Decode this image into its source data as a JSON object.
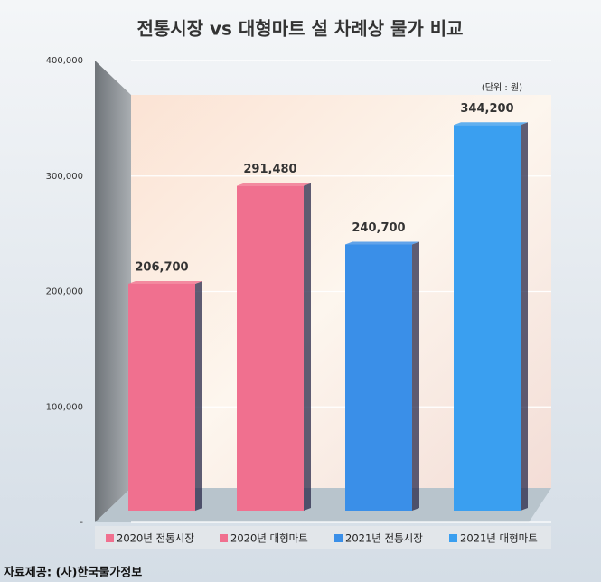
{
  "chart_data": {
    "type": "bar",
    "title": "전통시장 vs 대형마트  설 차례상 물가 비교",
    "unit_note": "(단위 : 원)",
    "source": "자료제공: (사)한국물가정보",
    "categories": [
      "2020년 전통시장",
      "2020년 대형마트",
      "2021년 전통시장",
      "2021년 대형마트"
    ],
    "values": [
      206700,
      291480,
      240700,
      344200
    ],
    "value_labels": [
      "206,700",
      "291,480",
      "240,700",
      "344,200"
    ],
    "colors": [
      "#f0708f",
      "#f0708f",
      "#3a8fe8",
      "#3a9ff0"
    ],
    "ylim": [
      0,
      400000
    ],
    "yticks": [
      {
        "value": 0,
        "label": "-"
      },
      {
        "value": 100000,
        "label": "100,000"
      },
      {
        "value": 200000,
        "label": "200,000"
      },
      {
        "value": 300000,
        "label": "300,000"
      },
      {
        "value": 400000,
        "label": "400,000"
      }
    ],
    "grid": true
  }
}
